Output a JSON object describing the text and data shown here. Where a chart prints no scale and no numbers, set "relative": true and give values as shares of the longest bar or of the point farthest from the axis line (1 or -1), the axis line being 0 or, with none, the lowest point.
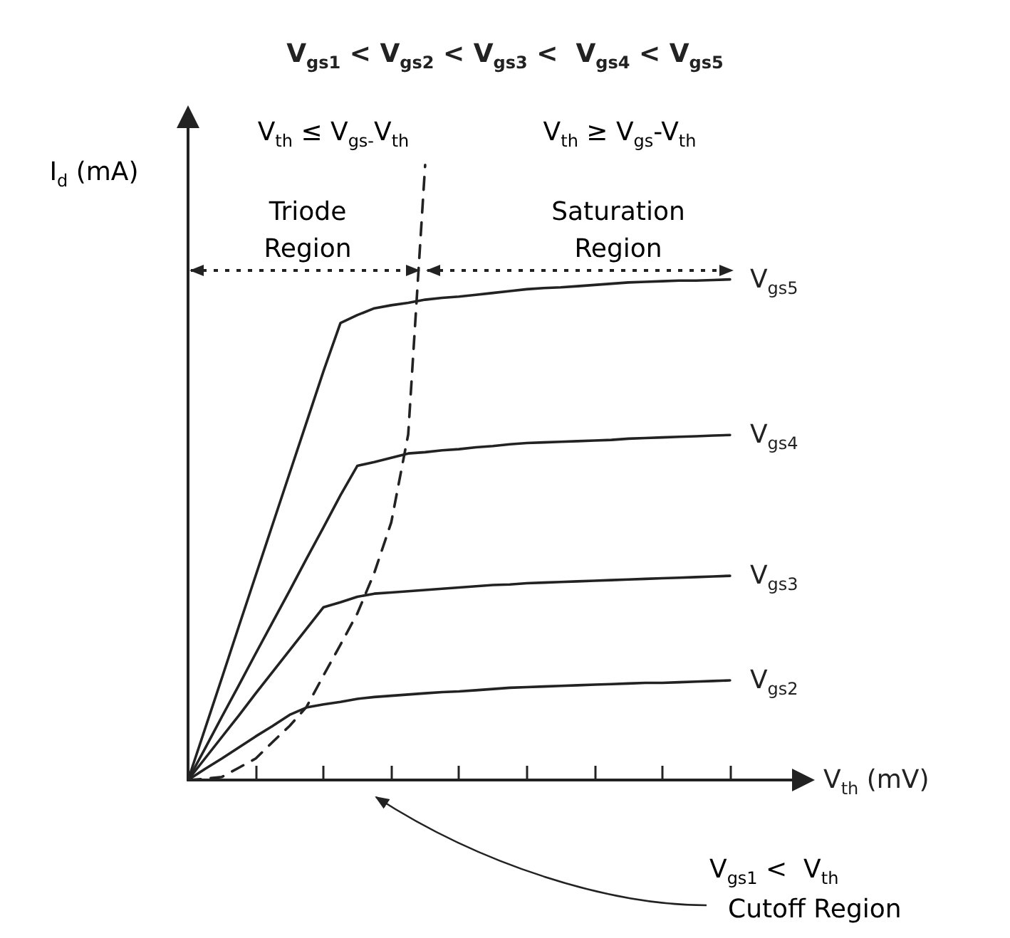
{
  "chart_data": {
    "type": "line",
    "relative": true,
    "title": "V$_{gs1}$ < V$_{gs2}$ < V$_{gs3}$ <  V$_{gs4}$ < V$_{gs5}$",
    "xlabel": "V$_{th}$ (mV)",
    "ylabel": "I$_{d}$ (mA)",
    "categories": [
      null,
      null,
      null,
      null,
      null,
      null,
      null,
      null,
      null,
      null,
      null,
      null,
      null,
      null,
      null,
      null,
      null,
      null,
      null,
      null,
      null,
      null,
      null,
      null,
      null,
      null,
      null,
      null,
      null,
      null,
      null,
      null,
      null,
      null,
      null,
      null,
      null
    ],
    "marker": "none",
    "series": [
      {
        "name": "V$_{gs5}$",
        "color": "#222222",
        "line_style": "solid",
        "values": [
          0,
          0.083,
          0.166,
          0.25,
          0.333,
          0.416,
          0.499,
          0.582,
          0.665,
          0.743,
          0.756,
          0.767,
          0.772,
          0.776,
          0.781,
          0.784,
          0.786,
          0.789,
          0.792,
          0.795,
          0.798,
          0.8,
          0.801,
          0.803,
          0.805,
          0.807,
          0.809,
          0.81,
          0.811,
          0.812,
          0.812,
          0.813,
          0.814,
          null,
          null,
          null,
          null
        ]
      },
      {
        "name": "V$_{gs4}$",
        "color": "#222222",
        "line_style": "solid",
        "values": [
          0,
          0.051,
          0.103,
          0.154,
          0.206,
          0.257,
          0.308,
          0.36,
          0.411,
          0.463,
          0.511,
          0.517,
          0.524,
          0.531,
          0.533,
          0.536,
          0.538,
          0.541,
          0.543,
          0.546,
          0.548,
          0.549,
          0.55,
          0.551,
          0.552,
          0.553,
          0.555,
          0.556,
          0.557,
          0.558,
          0.559,
          0.56,
          0.561,
          null,
          null,
          null,
          null
        ]
      },
      {
        "name": "V$_{gs3}$",
        "color": "#222222",
        "line_style": "solid",
        "values": [
          0,
          0.035,
          0.07,
          0.105,
          0.141,
          0.176,
          0.211,
          0.246,
          0.281,
          0.289,
          0.298,
          0.303,
          0.305,
          0.307,
          0.309,
          0.311,
          0.313,
          0.315,
          0.317,
          0.318,
          0.32,
          0.321,
          0.322,
          0.323,
          0.324,
          0.325,
          0.326,
          0.327,
          0.328,
          0.329,
          0.33,
          0.331,
          0.332,
          null,
          null,
          null,
          null
        ]
      },
      {
        "name": "V$_{gs2}$",
        "color": "#222222",
        "line_style": "solid",
        "values": [
          0,
          0.018,
          0.035,
          0.053,
          0.071,
          0.088,
          0.106,
          0.118,
          0.123,
          0.127,
          0.132,
          0.135,
          0.137,
          0.139,
          0.141,
          0.143,
          0.144,
          0.146,
          0.148,
          0.15,
          0.151,
          0.152,
          0.153,
          0.154,
          0.155,
          0.156,
          0.157,
          0.158,
          0.158,
          0.159,
          0.16,
          0.161,
          0.162,
          null,
          null,
          null,
          null
        ]
      },
      {
        "color": "#222222",
        "line_style": "dashed",
        "values": [
          0,
          0.002,
          0.005,
          0.02,
          0.035,
          0.062,
          0.088,
          0.119,
          0.17,
          0.22,
          0.271,
          0.337,
          0.419,
          0.562,
          1.0,
          null,
          null,
          null,
          null,
          null,
          null,
          null,
          null,
          null,
          null,
          null,
          null,
          null,
          null,
          null,
          null,
          null,
          null,
          null,
          null,
          null,
          null
        ]
      }
    ],
    "annotations": [
      "V$_{th}$ ≤ V$_{gs-}$V$_{th}$",
      "V$_{th}$ ≥ V$_{gs}$-V$_{th}$",
      "Triode\nRegion",
      "Saturation\nRegion",
      "V$_{gs1}$ <  V$_{th}$",
      "Cutoff Region"
    ]
  }
}
